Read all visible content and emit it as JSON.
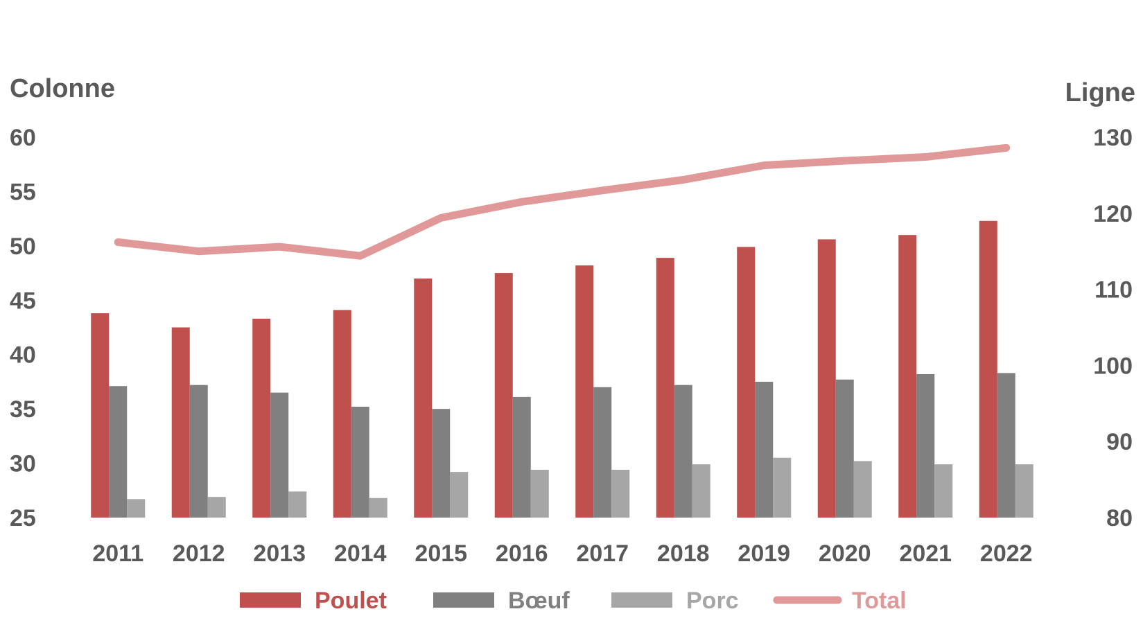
{
  "chart_data": {
    "type": "bar",
    "title": "",
    "categories": [
      "2011",
      "2012",
      "2013",
      "2014",
      "2015",
      "2016",
      "2017",
      "2018",
      "2019",
      "2020",
      "2021",
      "2022"
    ],
    "y_left": {
      "label": "Colonne",
      "range": [
        25,
        60
      ],
      "ticks": [
        25,
        30,
        35,
        40,
        45,
        50,
        55,
        60
      ]
    },
    "y_right": {
      "label": "Ligne",
      "range": [
        80,
        130
      ],
      "ticks": [
        80,
        90,
        100,
        110,
        120,
        130
      ]
    },
    "series": [
      {
        "name": "Poulet",
        "type": "bar",
        "axis": "left",
        "color": "#c0504d",
        "values": [
          43.8,
          42.5,
          43.3,
          44.1,
          47.0,
          47.5,
          48.2,
          48.9,
          49.9,
          50.6,
          51.0,
          52.3
        ]
      },
      {
        "name": "Bœuf",
        "type": "bar",
        "axis": "left",
        "color": "#808080",
        "values": [
          37.1,
          37.2,
          36.5,
          35.2,
          35.0,
          36.1,
          37.0,
          37.2,
          37.5,
          37.7,
          38.2,
          38.3
        ]
      },
      {
        "name": "Porc",
        "type": "bar",
        "axis": "left",
        "color": "#a6a6a6",
        "values": [
          26.7,
          26.9,
          27.4,
          26.8,
          29.2,
          29.4,
          29.4,
          29.9,
          30.5,
          30.2,
          29.9,
          29.9
        ]
      },
      {
        "name": "Total",
        "type": "line",
        "axis": "right",
        "color": "#e09898",
        "values": [
          116.2,
          115.0,
          115.6,
          114.4,
          119.4,
          121.5,
          123.0,
          124.4,
          126.3,
          126.9,
          127.4,
          128.6
        ]
      }
    ],
    "legend_position": "bottom",
    "grid": false
  }
}
